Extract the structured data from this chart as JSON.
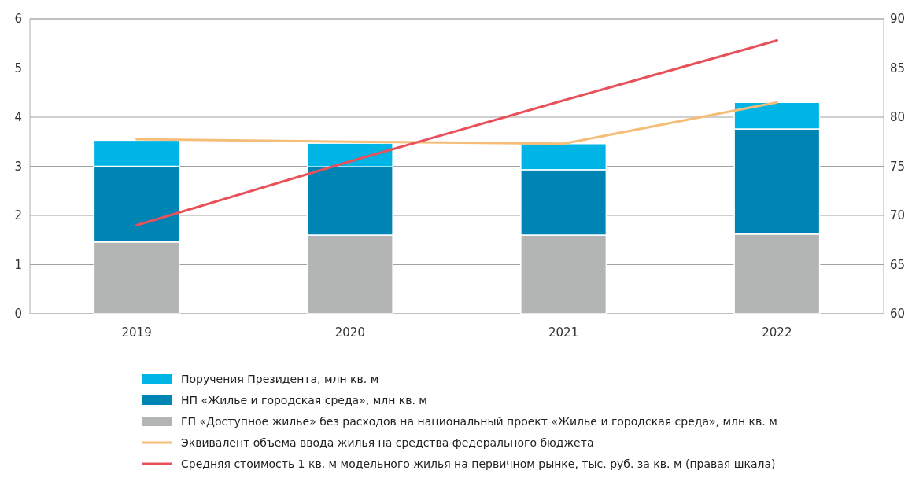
{
  "chart_data": {
    "type": "bar",
    "stacked": true,
    "categories": [
      "2019",
      "2020",
      "2021",
      "2022"
    ],
    "series": [
      {
        "name": "ГП «Доступное жилье» без расходов на национальный проект «Жилье и городская среда», млн кв. м",
        "color": "#b3b5b5",
        "values": [
          1.46,
          1.6,
          1.6,
          1.62
        ]
      },
      {
        "name": "НП «Жилье и городская среда», млн кв. м",
        "color": "#0084b4",
        "values": [
          1.54,
          1.39,
          1.33,
          2.14
        ]
      },
      {
        "name": "Поручения Президента, млн кв. м",
        "color": "#00b4e6",
        "values": [
          0.53,
          0.48,
          0.53,
          0.54
        ]
      },
      {
        "name": "Эквивалент объема ввода жилья на средства федерального бюджета",
        "type": "line",
        "color": "#f5be78",
        "values": [
          3.55,
          3.5,
          3.46,
          4.3
        ]
      },
      {
        "name": "Средняя стоимость 1 кв. м модельного жилья на первичном рынке, тыс. руб. за кв. м (правая шкала)",
        "type": "line",
        "axis": "y2",
        "color": "#e8515a",
        "values": [
          69,
          75.5,
          81.7,
          87.8
        ]
      }
    ],
    "ylim": [
      0,
      6
    ],
    "yticks": [
      0,
      1,
      2,
      3,
      4,
      5,
      6
    ],
    "y2lim": [
      60,
      90
    ],
    "y2ticks": [
      60,
      65,
      70,
      75,
      80,
      85,
      90
    ],
    "grid": "y",
    "legend": "bottom",
    "line_style": "solid",
    "marker": "none"
  }
}
